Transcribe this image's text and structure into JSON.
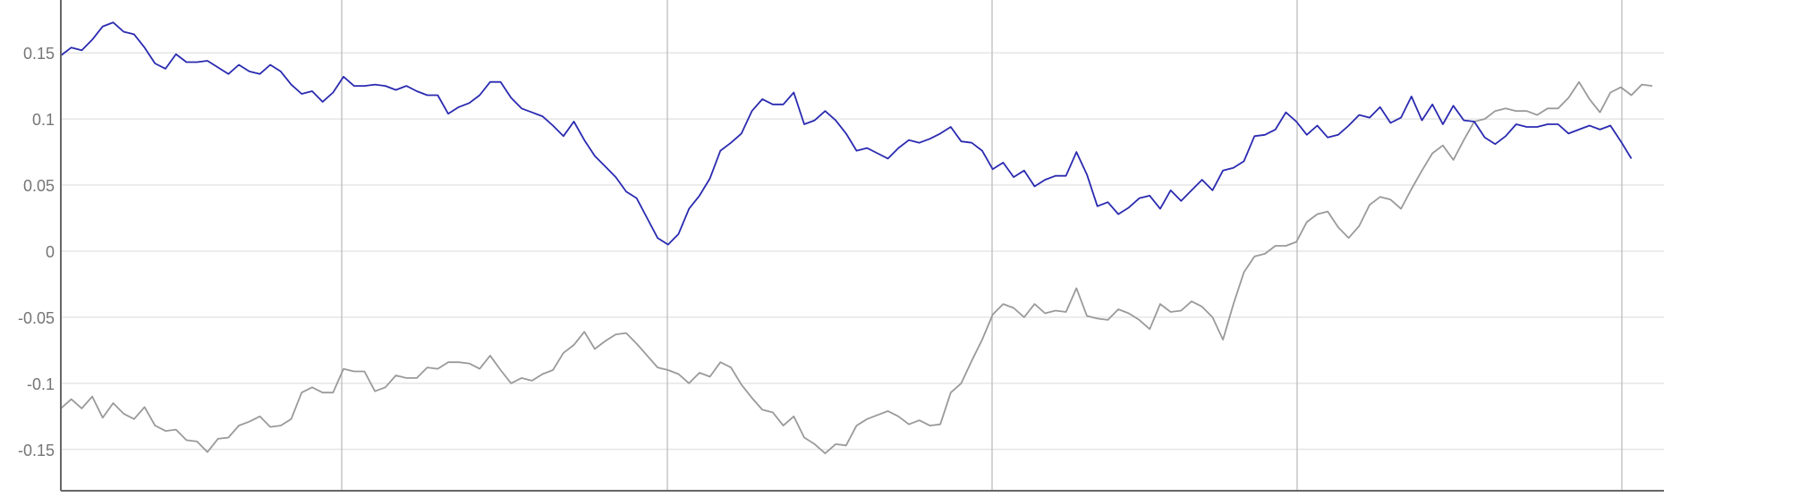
{
  "chart_data": {
    "type": "line",
    "title": "",
    "xlabel": "",
    "ylabel": "",
    "ylim": [
      -0.186,
      0.19
    ],
    "grid": true,
    "y_ticks": [
      "0.15",
      "0.1",
      "0.05",
      "0",
      "-0.05",
      "-0.1",
      "-0.15"
    ],
    "y_tick_values": [
      0.15,
      0.1,
      0.05,
      0,
      -0.05,
      -0.1,
      -0.15
    ],
    "x_gridlines_count": 5,
    "series": [
      {
        "color": "#2a2ab0",
        "values": [
          0.148,
          0.154,
          0.152,
          0.16,
          0.17,
          0.173,
          0.166,
          0.164,
          0.154,
          0.142,
          0.138,
          0.149,
          0.143,
          0.143,
          0.144,
          0.139,
          0.134,
          0.141,
          0.136,
          0.134,
          0.141,
          0.136,
          0.126,
          0.119,
          0.121,
          0.113,
          0.12,
          0.132,
          0.125,
          0.125,
          0.126,
          0.125,
          0.122,
          0.125,
          0.121,
          0.118,
          0.118,
          0.104,
          0.109,
          0.112,
          0.118,
          0.128,
          0.128,
          0.116,
          0.108,
          0.105,
          0.102,
          0.095,
          0.087,
          0.098,
          0.084,
          0.072,
          0.064,
          0.056,
          0.045,
          0.04,
          0.025,
          0.01,
          0.005,
          0.013,
          0.032,
          0.042,
          0.055,
          0.076,
          0.082,
          0.089,
          0.106,
          0.115,
          0.111,
          0.111,
          0.12,
          0.096,
          0.099,
          0.106,
          0.099,
          0.089,
          0.076,
          0.078,
          0.074,
          0.07,
          0.078,
          0.084,
          0.082,
          0.085,
          0.089,
          0.094,
          0.083,
          0.082,
          0.076,
          0.062,
          0.067,
          0.056,
          0.061,
          0.049,
          0.054,
          0.057,
          0.057,
          0.075,
          0.058,
          0.034,
          0.037,
          0.028,
          0.033,
          0.04,
          0.042,
          0.032,
          0.046,
          0.038,
          0.046,
          0.054,
          0.046,
          0.061,
          0.063,
          0.068,
          0.087,
          0.088,
          0.092,
          0.105,
          0.098,
          0.088,
          0.095,
          0.086,
          0.088,
          0.095,
          0.103,
          0.101,
          0.109,
          0.097,
          0.101,
          0.117,
          0.099,
          0.111,
          0.096,
          0.11,
          0.099,
          0.098,
          0.086,
          0.081,
          0.087,
          0.096,
          0.094,
          0.094,
          0.096,
          0.096,
          0.089,
          0.092,
          0.095,
          0.092,
          0.095,
          0.083,
          0.07
        ]
      },
      {
        "color": "#9a9a9a",
        "values": [
          -0.119,
          -0.112,
          -0.119,
          -0.11,
          -0.126,
          -0.115,
          -0.123,
          -0.127,
          -0.118,
          -0.132,
          -0.136,
          -0.135,
          -0.143,
          -0.144,
          -0.152,
          -0.142,
          -0.141,
          -0.132,
          -0.129,
          -0.125,
          -0.133,
          -0.132,
          -0.127,
          -0.107,
          -0.103,
          -0.107,
          -0.107,
          -0.089,
          -0.091,
          -0.091,
          -0.106,
          -0.103,
          -0.094,
          -0.096,
          -0.096,
          -0.088,
          -0.089,
          -0.084,
          -0.084,
          -0.085,
          -0.089,
          -0.079,
          -0.09,
          -0.1,
          -0.096,
          -0.098,
          -0.093,
          -0.09,
          -0.077,
          -0.071,
          -0.061,
          -0.074,
          -0.068,
          -0.063,
          -0.062,
          -0.07,
          -0.079,
          -0.088,
          -0.09,
          -0.093,
          -0.1,
          -0.092,
          -0.095,
          -0.084,
          -0.088,
          -0.101,
          -0.111,
          -0.12,
          -0.122,
          -0.132,
          -0.125,
          -0.141,
          -0.146,
          -0.153,
          -0.146,
          -0.147,
          -0.132,
          -0.127,
          -0.124,
          -0.121,
          -0.125,
          -0.131,
          -0.128,
          -0.132,
          -0.131,
          -0.107,
          -0.1,
          -0.083,
          -0.067,
          -0.048,
          -0.04,
          -0.043,
          -0.05,
          -0.04,
          -0.047,
          -0.045,
          -0.046,
          -0.028,
          -0.049,
          -0.051,
          -0.052,
          -0.044,
          -0.047,
          -0.052,
          -0.059,
          -0.04,
          -0.046,
          -0.045,
          -0.038,
          -0.042,
          -0.05,
          -0.067,
          -0.04,
          -0.016,
          -0.004,
          -0.002,
          0.004,
          0.004,
          0.007,
          0.022,
          0.028,
          0.03,
          0.018,
          0.01,
          0.019,
          0.035,
          0.041,
          0.039,
          0.032,
          0.047,
          0.061,
          0.074,
          0.08,
          0.069,
          0.084,
          0.098,
          0.1,
          0.106,
          0.108,
          0.106,
          0.106,
          0.103,
          0.108,
          0.108,
          0.116,
          0.128,
          0.115,
          0.105,
          0.12,
          0.124,
          0.118,
          0.126,
          0.125
        ]
      }
    ]
  }
}
